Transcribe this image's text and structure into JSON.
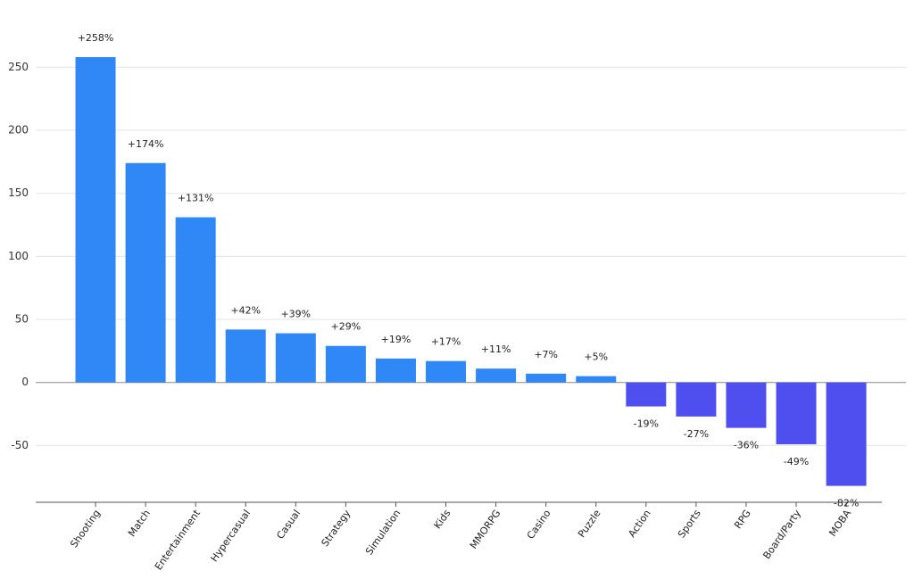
{
  "chart_data": {
    "type": "bar",
    "categories": [
      "Shooting",
      "Match",
      "Entertainment",
      "Hypercasual",
      "Casual",
      "Strategy",
      "Simulation",
      "Kids",
      "MMORPG",
      "Casino",
      "Puzzle",
      "Action",
      "Sports",
      "RPG",
      "Board/Party",
      "MOBA"
    ],
    "values": [
      258,
      174,
      131,
      42,
      39,
      29,
      19,
      17,
      11,
      7,
      5,
      -19,
      -27,
      -36,
      -49,
      -82
    ],
    "value_labels": [
      "+258%",
      "+174%",
      "+131%",
      "+42%",
      "+39%",
      "+29%",
      "+19%",
      "+17%",
      "+11%",
      "+7%",
      "+5%",
      "-19%",
      "-27%",
      "-36%",
      "-49%",
      "-82%"
    ],
    "positive_color": "#2f88f5",
    "negative_color": "#4f4ff0",
    "ylim": [
      -95,
      275
    ],
    "yticks": [
      -50,
      0,
      50,
      100,
      150,
      200,
      250
    ],
    "grid": true
  }
}
